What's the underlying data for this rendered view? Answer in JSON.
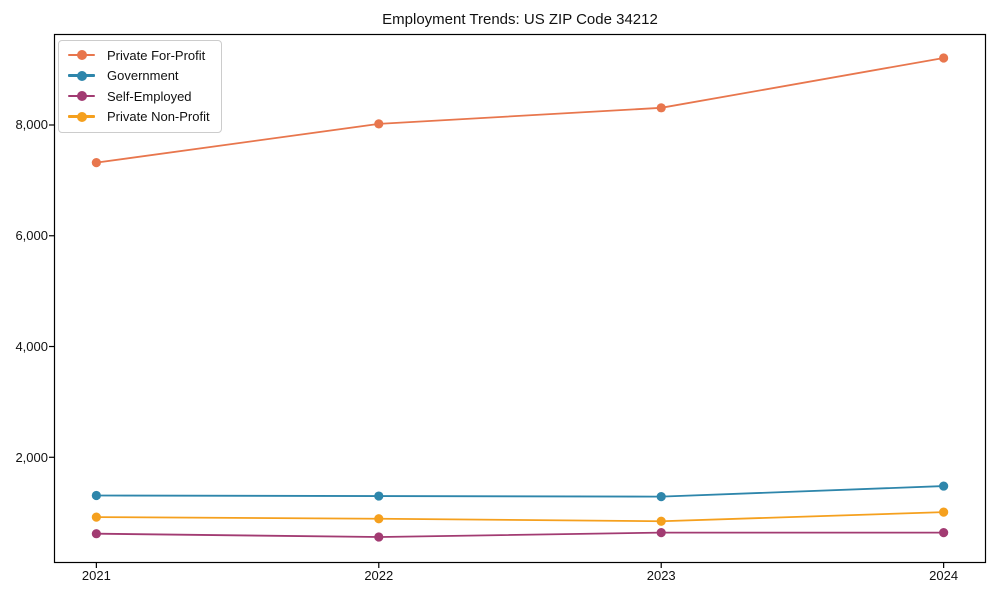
{
  "chart_data": {
    "type": "line",
    "title": "Employment Trends: US ZIP Code 34212",
    "xlabel": "",
    "ylabel": "",
    "categories": [
      2021,
      2022,
      2023,
      2024
    ],
    "xtick_labels": [
      "2021",
      "2022",
      "2023",
      "2024"
    ],
    "ytick_values": [
      2000,
      4000,
      6000,
      8000
    ],
    "ytick_labels": [
      "2,000",
      "4,000",
      "6,000",
      "8,000"
    ],
    "ylim": [
      91,
      9643
    ],
    "x_margin_fraction": 0.15,
    "grid": false,
    "background": "#ffffff",
    "axis_color": "#000000",
    "legend_position": "upper-left",
    "marker": "circle",
    "series": [
      {
        "name": "Private For-Profit",
        "color": "#E8764D",
        "values": [
          7320,
          8020,
          8310,
          9210
        ]
      },
      {
        "name": "Government",
        "color": "#2E86AB",
        "values": [
          1310,
          1300,
          1290,
          1480
        ]
      },
      {
        "name": "Self-Employed",
        "color": "#A23B72",
        "values": [
          620,
          560,
          640,
          640
        ]
      },
      {
        "name": "Private Non-Profit",
        "color": "#F5A01E",
        "values": [
          920,
          890,
          845,
          1010
        ]
      }
    ]
  }
}
